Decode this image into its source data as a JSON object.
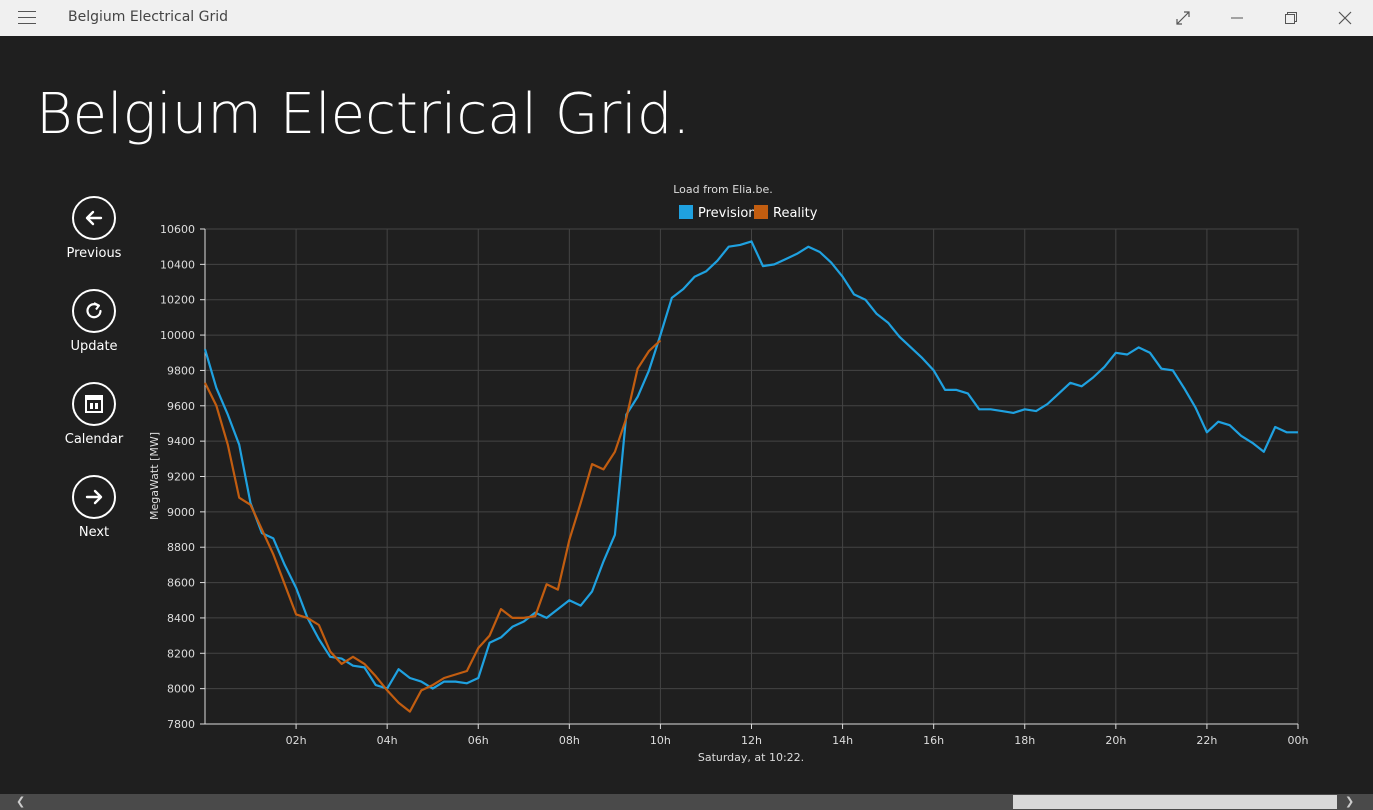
{
  "window": {
    "title": "Belgium Electrical Grid",
    "menu_icon": "hamburger-icon",
    "buttons": [
      "fullscreen-icon",
      "minimize-icon",
      "restore-icon",
      "close-icon"
    ]
  },
  "page": {
    "title": "Belgium Electrical Grid."
  },
  "nav": [
    {
      "label": "Previous",
      "icon": "arrow-left-icon"
    },
    {
      "label": "Update",
      "icon": "refresh-icon"
    },
    {
      "label": "Calendar",
      "icon": "calendar-icon"
    },
    {
      "label": "Next",
      "icon": "arrow-right-icon"
    }
  ],
  "colors": {
    "prevision": "#1fa1e0",
    "reality": "#c25d10",
    "background": "#1f1f1f"
  },
  "chart_data": {
    "type": "line",
    "title": "Load from Elia.be.",
    "xlabel": "Saturday, at 10:22.",
    "ylabel": "MegaWatt [MW]",
    "ylim": [
      7800,
      10600
    ],
    "yticks": [
      7800,
      8000,
      8200,
      8400,
      8600,
      8800,
      9000,
      9200,
      9400,
      9600,
      9800,
      10000,
      10200,
      10400,
      10600
    ],
    "xlim": [
      0,
      24
    ],
    "xtick_labels": [
      "02h",
      "04h",
      "06h",
      "08h",
      "10h",
      "12h",
      "14h",
      "16h",
      "18h",
      "20h",
      "22h",
      "00h"
    ],
    "legend_position": "top-center",
    "grid": true,
    "series": [
      {
        "name": "Prevision",
        "color": "#1fa1e0",
        "x": [
          0,
          0.25,
          0.5,
          0.75,
          1,
          1.25,
          1.5,
          1.75,
          2,
          2.25,
          2.5,
          2.75,
          3,
          3.25,
          3.5,
          3.75,
          4,
          4.25,
          4.5,
          4.75,
          5,
          5.25,
          5.5,
          5.75,
          6,
          6.25,
          6.5,
          6.75,
          7,
          7.25,
          7.5,
          7.75,
          8,
          8.25,
          8.5,
          8.75,
          9,
          9.25,
          9.5,
          9.75,
          10,
          10.25,
          10.5,
          10.75,
          11,
          11.25,
          11.5,
          11.75,
          12,
          12.25,
          12.5,
          12.75,
          13,
          13.25,
          13.5,
          13.75,
          14,
          14.25,
          14.5,
          14.75,
          15,
          15.25,
          15.5,
          15.75,
          16,
          16.25,
          16.5,
          16.75,
          17,
          17.25,
          17.5,
          17.75,
          18,
          18.25,
          18.5,
          18.75,
          19,
          19.25,
          19.5,
          19.75,
          20,
          20.25,
          20.5,
          20.75,
          21,
          21.25,
          21.5,
          21.75,
          22,
          22.25,
          22.5,
          22.75,
          23,
          23.25,
          23.5,
          23.75,
          24
        ],
        "values": [
          9920,
          9700,
          9550,
          9380,
          9050,
          8880,
          8850,
          8700,
          8570,
          8400,
          8280,
          8180,
          8170,
          8130,
          8120,
          8020,
          8000,
          8110,
          8060,
          8040,
          8000,
          8040,
          8040,
          8030,
          8060,
          8260,
          8290,
          8350,
          8380,
          8430,
          8400,
          8450,
          8500,
          8470,
          8550,
          8720,
          8870,
          9550,
          9650,
          9800,
          10000,
          10210,
          10260,
          10330,
          10360,
          10420,
          10500,
          10510,
          10530,
          10390,
          10400,
          10430,
          10460,
          10500,
          10470,
          10410,
          10330,
          10230,
          10200,
          10120,
          10070,
          9990,
          9930,
          9870,
          9800,
          9690,
          9690,
          9670,
          9580,
          9580,
          9570,
          9560,
          9580,
          9570,
          9610,
          9670,
          9730,
          9710,
          9760,
          9820,
          9900,
          9890,
          9930,
          9900,
          9810,
          9800,
          9700,
          9590,
          9450,
          9510,
          9490,
          9430,
          9390,
          9340,
          9480,
          9450,
          9450
        ]
      },
      {
        "name": "Reality",
        "color": "#c25d10",
        "x": [
          0,
          0.25,
          0.5,
          0.75,
          1,
          1.25,
          1.5,
          1.75,
          2,
          2.25,
          2.5,
          2.75,
          3,
          3.25,
          3.5,
          3.75,
          4,
          4.25,
          4.5,
          4.75,
          5,
          5.25,
          5.5,
          5.75,
          6,
          6.25,
          6.5,
          6.75,
          7,
          7.25,
          7.5,
          7.75,
          8,
          8.25,
          8.5,
          8.75,
          9,
          9.25,
          9.5,
          9.75,
          10
        ],
        "values": [
          9730,
          9600,
          9380,
          9080,
          9040,
          8900,
          8760,
          8590,
          8420,
          8400,
          8360,
          8210,
          8140,
          8180,
          8140,
          8070,
          7990,
          7920,
          7870,
          7990,
          8020,
          8060,
          8080,
          8100,
          8230,
          8300,
          8450,
          8400,
          8400,
          8410,
          8590,
          8560,
          8840,
          9050,
          9270,
          9240,
          9340,
          9530,
          9810,
          9910,
          9970
        ]
      }
    ]
  },
  "scrollbar": {
    "left_arrow": "chevron-left-icon",
    "right_arrow": "chevron-right-icon"
  }
}
